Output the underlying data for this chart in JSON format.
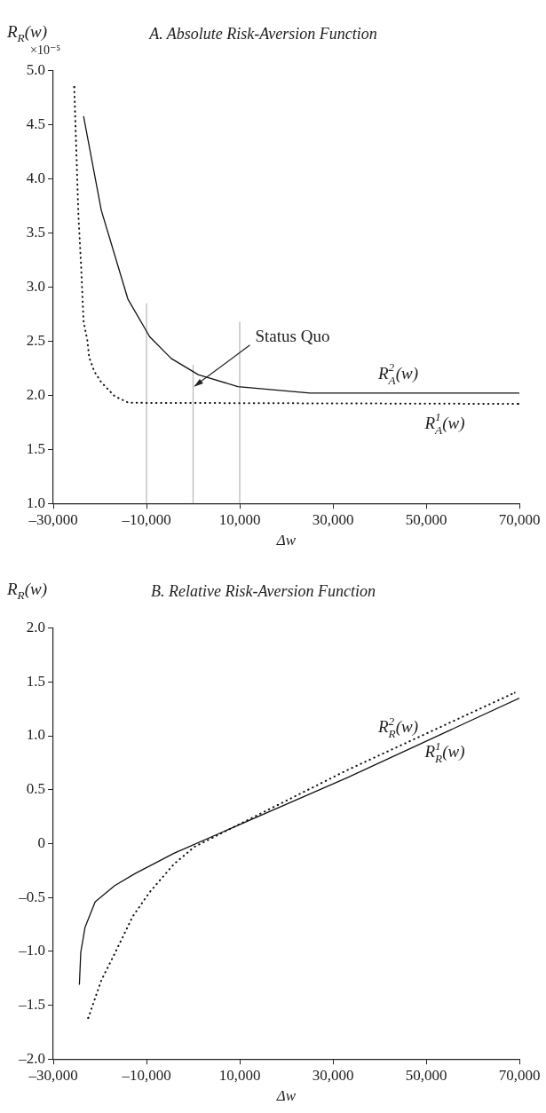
{
  "chart_data": [
    {
      "type": "line",
      "title": "A. Absolute Risk-Aversion Function",
      "xlabel": "Δw",
      "ylabel": "R$_{R}$(w)",
      "xlim": [
        -30000,
        70000
      ],
      "xticks": [
        {
          "value": -30000,
          "label": "–30,000"
        },
        {
          "value": -10000,
          "label": "–10,000"
        },
        {
          "value": 10000,
          "label": "10,000"
        },
        {
          "value": 30000,
          "label": "30,000"
        },
        {
          "value": 50000,
          "label": "50,000"
        },
        {
          "value": 70000,
          "label": "70,000"
        }
      ],
      "ylim": [
        1.0,
        5.0
      ],
      "yticks": [
        {
          "value": 1.0,
          "label": "1.0"
        },
        {
          "value": 1.5,
          "label": "1.5"
        },
        {
          "value": 2.0,
          "label": "2.0"
        },
        {
          "value": 2.5,
          "label": "2.5"
        },
        {
          "value": 3.0,
          "label": "3.0"
        },
        {
          "value": 3.5,
          "label": "3.5"
        },
        {
          "value": 4.0,
          "label": "4.0"
        },
        {
          "value": 4.5,
          "label": "4.5"
        },
        {
          "value": 5.0,
          "label": "5.0"
        }
      ],
      "annotations": [
        "×10⁻⁵",
        {
          "text": "Status Quo",
          "x": 0,
          "y": 2.07
        }
      ],
      "series": [
        {
          "name": "R$_{A}$$^{1}$(w)",
          "color": "#111111",
          "line_style": "dotted",
          "x": [
            -25500,
            -24600,
            -24000,
            -23500,
            -22700,
            -22300,
            -21200,
            -19700,
            -16800,
            -13800,
            70000
          ],
          "values": [
            4.85,
            3.66,
            3.17,
            2.68,
            2.51,
            2.35,
            2.22,
            2.12,
            1.99,
            1.93,
            1.92
          ]
        },
        {
          "name": "R$_{A}$$^{2}$(w)",
          "color": "#111111",
          "line_style": "solid",
          "x": [
            -23500,
            -19700,
            -14000,
            -9300,
            -4700,
            1100,
            9600,
            25100,
            70000
          ],
          "values": [
            4.58,
            3.71,
            2.89,
            2.54,
            2.34,
            2.19,
            2.08,
            2.02,
            2.02
          ]
        },
        {
          "color": "#bbbbbb",
          "line_style": "solid",
          "x": [
            -10000,
            -10000
          ],
          "values": [
            1.0,
            2.85
          ]
        },
        {
          "color": "#bbbbbb",
          "line_style": "solid",
          "x": [
            0,
            0
          ],
          "values": [
            1.0,
            2.28
          ]
        },
        {
          "color": "#bbbbbb",
          "line_style": "solid",
          "x": [
            10000,
            10000
          ],
          "values": [
            1.0,
            2.68
          ]
        }
      ]
    },
    {
      "type": "line",
      "title": "B. Relative Risk-Aversion Function",
      "xlabel": "Δw",
      "ylabel": "R$_{R}$(w)",
      "xlim": [
        -30000,
        70000
      ],
      "xticks": [
        {
          "value": -30000,
          "label": "–30,000"
        },
        {
          "value": -10000,
          "label": "–10,000"
        },
        {
          "value": 10000,
          "label": "10,000"
        },
        {
          "value": 30000,
          "label": "30,000"
        },
        {
          "value": 50000,
          "label": "50,000"
        },
        {
          "value": 70000,
          "label": "70,000"
        }
      ],
      "ylim": [
        -2.0,
        2.0
      ],
      "yticks": [
        {
          "value": -2.0,
          "label": "–2.0"
        },
        {
          "value": -1.5,
          "label": "–1.5"
        },
        {
          "value": -1.0,
          "label": "–1.0"
        },
        {
          "value": -0.5,
          "label": "–0.5"
        },
        0,
        {
          "value": 0.5,
          "label": "0.5"
        },
        {
          "value": 1.0,
          "label": "1.0"
        },
        {
          "value": 1.5,
          "label": "1.5"
        },
        {
          "value": 2.0,
          "label": "2.0"
        }
      ],
      "series": [
        {
          "name": "R$_{R}$$^{1}$(w)",
          "color": "#111111",
          "line_style": "solid",
          "x": [
            -24400,
            -24100,
            -23200,
            -21000,
            -16800,
            -12500,
            -4100,
            33000,
            70000
          ],
          "values": [
            -1.31,
            -1.01,
            -0.78,
            -0.54,
            -0.39,
            -0.28,
            -0.09,
            0.61,
            1.35
          ]
        },
        {
          "name": "R$_{R}$$^{2}$(w)",
          "color": "#111111",
          "line_style": "dotted",
          "x": [
            -22500,
            -19700,
            -16800,
            -13000,
            -9300,
            -4100,
            300,
            33000,
            69000
          ],
          "values": [
            -1.62,
            -1.27,
            -1.02,
            -0.68,
            -0.45,
            -0.19,
            -0.03,
            0.68,
            1.4
          ]
        }
      ]
    }
  ]
}
